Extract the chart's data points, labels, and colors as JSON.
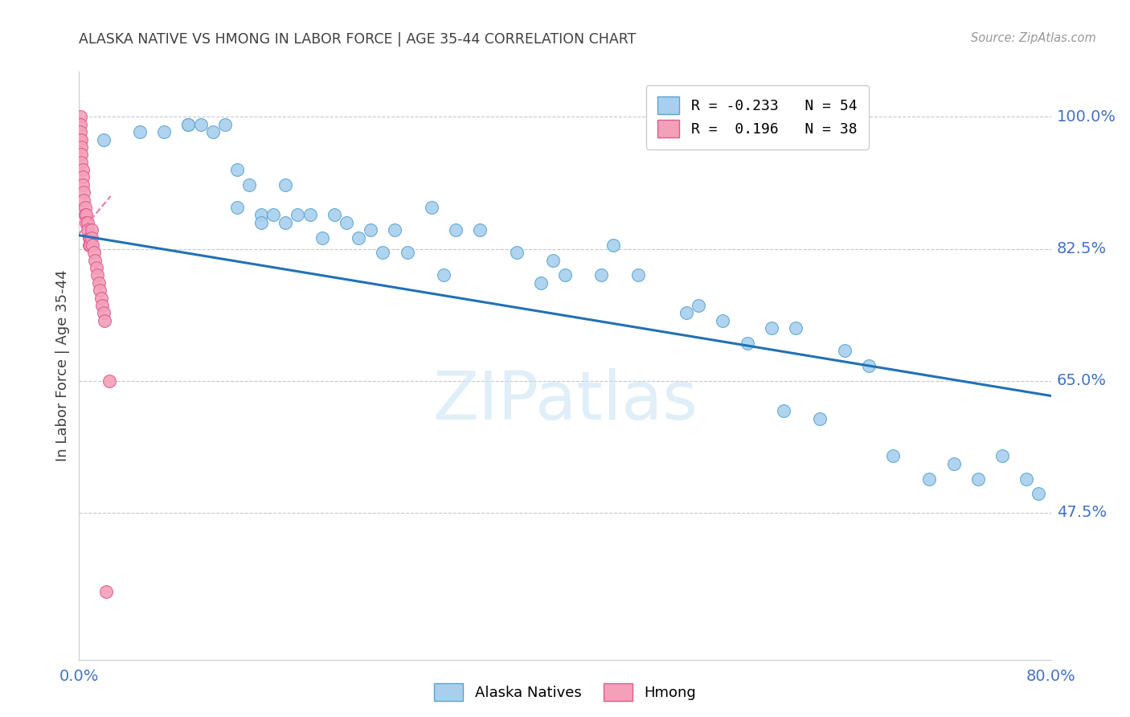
{
  "title": "ALASKA NATIVE VS HMONG IN LABOR FORCE | AGE 35-44 CORRELATION CHART",
  "source": "Source: ZipAtlas.com",
  "ylabel": "In Labor Force | Age 35-44",
  "xlim": [
    0.0,
    0.8
  ],
  "ylim": [
    0.28,
    1.06
  ],
  "yticks": [
    0.475,
    0.65,
    0.825,
    1.0
  ],
  "ytick_labels": [
    "47.5%",
    "65.0%",
    "82.5%",
    "100.0%"
  ],
  "alaska_R": -0.233,
  "alaska_N": 54,
  "hmong_R": 0.196,
  "hmong_N": 38,
  "alaska_color": "#a8d0ee",
  "alaska_edge": "#5ba3d0",
  "hmong_color": "#f4a0b8",
  "hmong_edge": "#e05890",
  "line_color_alaska": "#2171b5",
  "line_color_hmong": "#e87aaa",
  "alaska_points_x": [
    0.02,
    0.05,
    0.07,
    0.09,
    0.09,
    0.1,
    0.11,
    0.12,
    0.13,
    0.13,
    0.14,
    0.15,
    0.15,
    0.16,
    0.17,
    0.17,
    0.18,
    0.19,
    0.2,
    0.21,
    0.22,
    0.23,
    0.24,
    0.25,
    0.26,
    0.27,
    0.29,
    0.3,
    0.31,
    0.33,
    0.36,
    0.38,
    0.39,
    0.4,
    0.43,
    0.44,
    0.46,
    0.5,
    0.51,
    0.53,
    0.55,
    0.57,
    0.58,
    0.59,
    0.61,
    0.63,
    0.65,
    0.67,
    0.7,
    0.72,
    0.74,
    0.76,
    0.78,
    0.79
  ],
  "alaska_points_y": [
    0.97,
    0.98,
    0.98,
    0.99,
    0.99,
    0.99,
    0.98,
    0.99,
    0.93,
    0.88,
    0.91,
    0.87,
    0.86,
    0.87,
    0.91,
    0.86,
    0.87,
    0.87,
    0.84,
    0.87,
    0.86,
    0.84,
    0.85,
    0.82,
    0.85,
    0.82,
    0.88,
    0.79,
    0.85,
    0.85,
    0.82,
    0.78,
    0.81,
    0.79,
    0.79,
    0.83,
    0.79,
    0.74,
    0.75,
    0.73,
    0.7,
    0.72,
    0.61,
    0.72,
    0.6,
    0.69,
    0.67,
    0.55,
    0.52,
    0.54,
    0.52,
    0.55,
    0.52,
    0.5
  ],
  "hmong_points_x": [
    0.001,
    0.001,
    0.001,
    0.001,
    0.002,
    0.002,
    0.002,
    0.002,
    0.003,
    0.003,
    0.003,
    0.004,
    0.004,
    0.005,
    0.005,
    0.006,
    0.006,
    0.007,
    0.007,
    0.008,
    0.008,
    0.009,
    0.009,
    0.01,
    0.01,
    0.011,
    0.012,
    0.013,
    0.014,
    0.015,
    0.016,
    0.017,
    0.018,
    0.019,
    0.02,
    0.021,
    0.022,
    0.025
  ],
  "hmong_points_y": [
    1.0,
    0.99,
    0.98,
    0.97,
    0.97,
    0.96,
    0.95,
    0.94,
    0.93,
    0.92,
    0.91,
    0.9,
    0.89,
    0.88,
    0.87,
    0.87,
    0.86,
    0.86,
    0.85,
    0.84,
    0.83,
    0.84,
    0.83,
    0.85,
    0.84,
    0.83,
    0.82,
    0.81,
    0.8,
    0.79,
    0.78,
    0.77,
    0.76,
    0.75,
    0.74,
    0.73,
    0.37,
    0.65
  ],
  "alaska_line_x": [
    0.0,
    0.8
  ],
  "alaska_line_y": [
    0.843,
    0.63
  ],
  "hmong_line_x": [
    0.0,
    0.026
  ],
  "hmong_line_y": [
    0.845,
    0.895
  ],
  "background_color": "#ffffff",
  "grid_color": "#c8c8c8",
  "title_color": "#404040",
  "axis_label_color": "#404040",
  "right_tick_color": "#4472c4",
  "watermark_text": "ZIPatlas",
  "watermark_color": "#cce4f4",
  "watermark_alpha": 0.6
}
